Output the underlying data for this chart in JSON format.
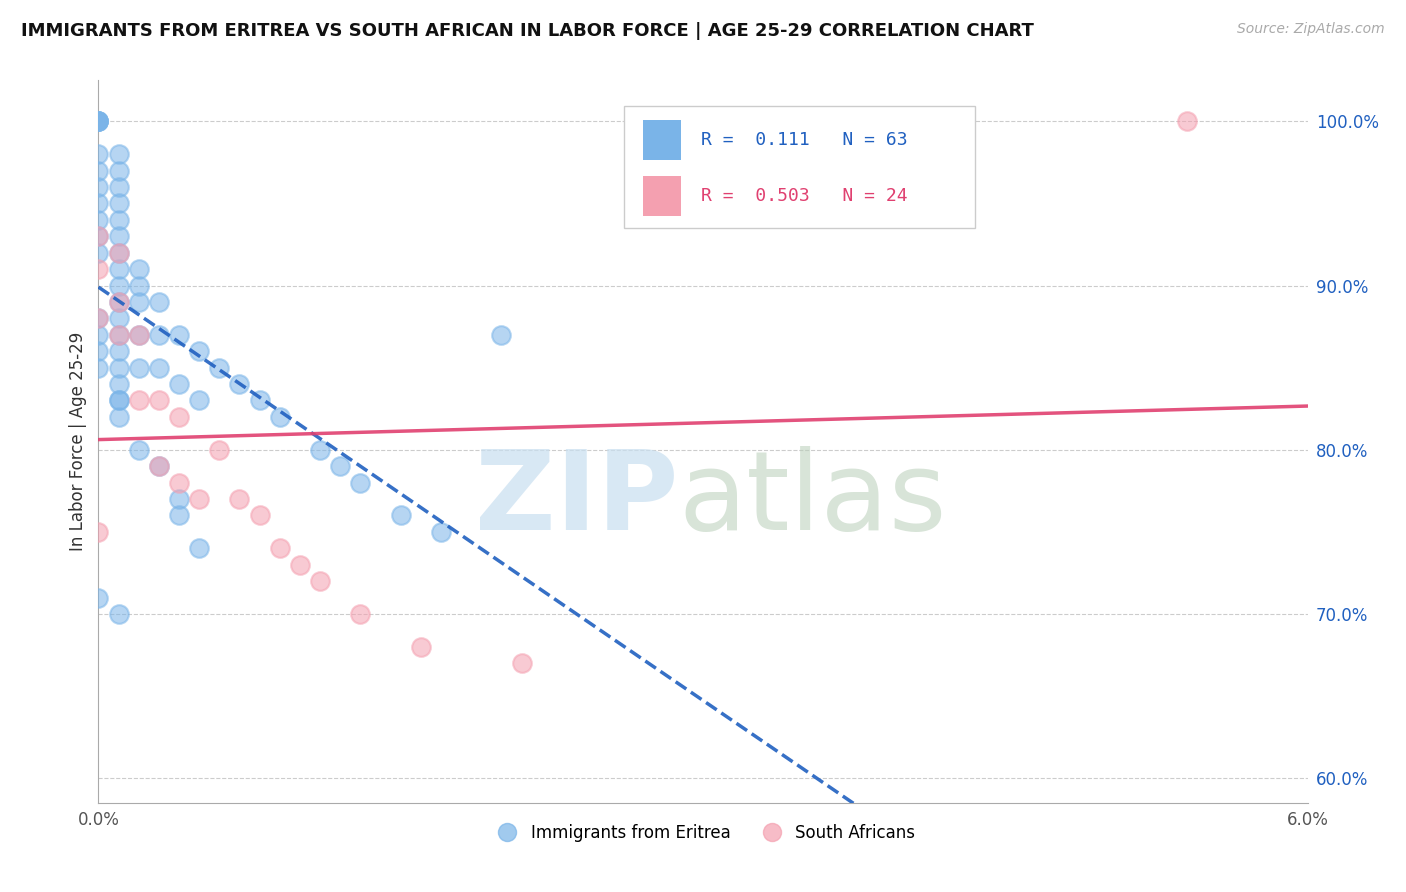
{
  "title": "IMMIGRANTS FROM ERITREA VS SOUTH AFRICAN IN LABOR FORCE | AGE 25-29 CORRELATION CHART",
  "source": "Source: ZipAtlas.com",
  "ylabel": "In Labor Force | Age 25-29",
  "xmin": 0.0,
  "xmax": 0.06,
  "ymin": 0.585,
  "ymax": 1.025,
  "y_ticks": [
    0.6,
    0.7,
    0.8,
    0.9,
    1.0
  ],
  "y_tick_labels": [
    "60.0%",
    "70.0%",
    "80.0%",
    "90.0%",
    "100.0%"
  ],
  "r_blue": 0.111,
  "n_blue": 63,
  "r_pink": 0.503,
  "n_pink": 24,
  "blue_color": "#7ab4e8",
  "pink_color": "#f4a0b0",
  "blue_line_color": "#2060c0",
  "pink_line_color": "#e04070",
  "legend_labels": [
    "Immigrants from Eritrea",
    "South Africans"
  ],
  "blue_scatter_x": [
    0.0,
    0.0,
    0.0,
    0.0,
    0.0,
    0.0,
    0.0,
    0.0,
    0.0,
    0.0,
    0.0,
    0.0,
    0.001,
    0.001,
    0.001,
    0.001,
    0.001,
    0.001,
    0.001,
    0.001,
    0.001,
    0.001,
    0.001,
    0.001,
    0.001,
    0.001,
    0.001,
    0.001,
    0.002,
    0.002,
    0.002,
    0.002,
    0.002,
    0.003,
    0.003,
    0.003,
    0.004,
    0.004,
    0.005,
    0.005,
    0.006,
    0.007,
    0.008,
    0.009,
    0.011,
    0.012,
    0.013,
    0.015,
    0.017,
    0.0,
    0.0,
    0.0,
    0.0,
    0.001,
    0.001,
    0.002,
    0.003,
    0.004,
    0.004,
    0.005,
    0.02,
    0.0,
    0.001
  ],
  "blue_scatter_y": [
    1.0,
    1.0,
    1.0,
    1.0,
    1.0,
    0.98,
    0.97,
    0.96,
    0.95,
    0.94,
    0.93,
    0.92,
    0.98,
    0.97,
    0.96,
    0.95,
    0.94,
    0.93,
    0.92,
    0.91,
    0.9,
    0.89,
    0.88,
    0.87,
    0.86,
    0.85,
    0.84,
    0.83,
    0.91,
    0.9,
    0.89,
    0.87,
    0.85,
    0.89,
    0.87,
    0.85,
    0.87,
    0.84,
    0.86,
    0.83,
    0.85,
    0.84,
    0.83,
    0.82,
    0.8,
    0.79,
    0.78,
    0.76,
    0.75,
    0.88,
    0.87,
    0.86,
    0.85,
    0.83,
    0.82,
    0.8,
    0.79,
    0.77,
    0.76,
    0.74,
    0.87,
    0.71,
    0.7
  ],
  "pink_scatter_x": [
    0.0,
    0.0,
    0.0,
    0.0,
    0.001,
    0.001,
    0.001,
    0.002,
    0.002,
    0.003,
    0.003,
    0.004,
    0.004,
    0.005,
    0.006,
    0.007,
    0.008,
    0.009,
    0.01,
    0.011,
    0.013,
    0.016,
    0.021,
    0.054
  ],
  "pink_scatter_y": [
    0.93,
    0.91,
    0.88,
    0.75,
    0.92,
    0.89,
    0.87,
    0.87,
    0.83,
    0.83,
    0.79,
    0.82,
    0.78,
    0.77,
    0.8,
    0.77,
    0.76,
    0.74,
    0.73,
    0.72,
    0.7,
    0.68,
    0.67,
    1.0
  ],
  "background_color": "#ffffff",
  "grid_color": "#cccccc"
}
